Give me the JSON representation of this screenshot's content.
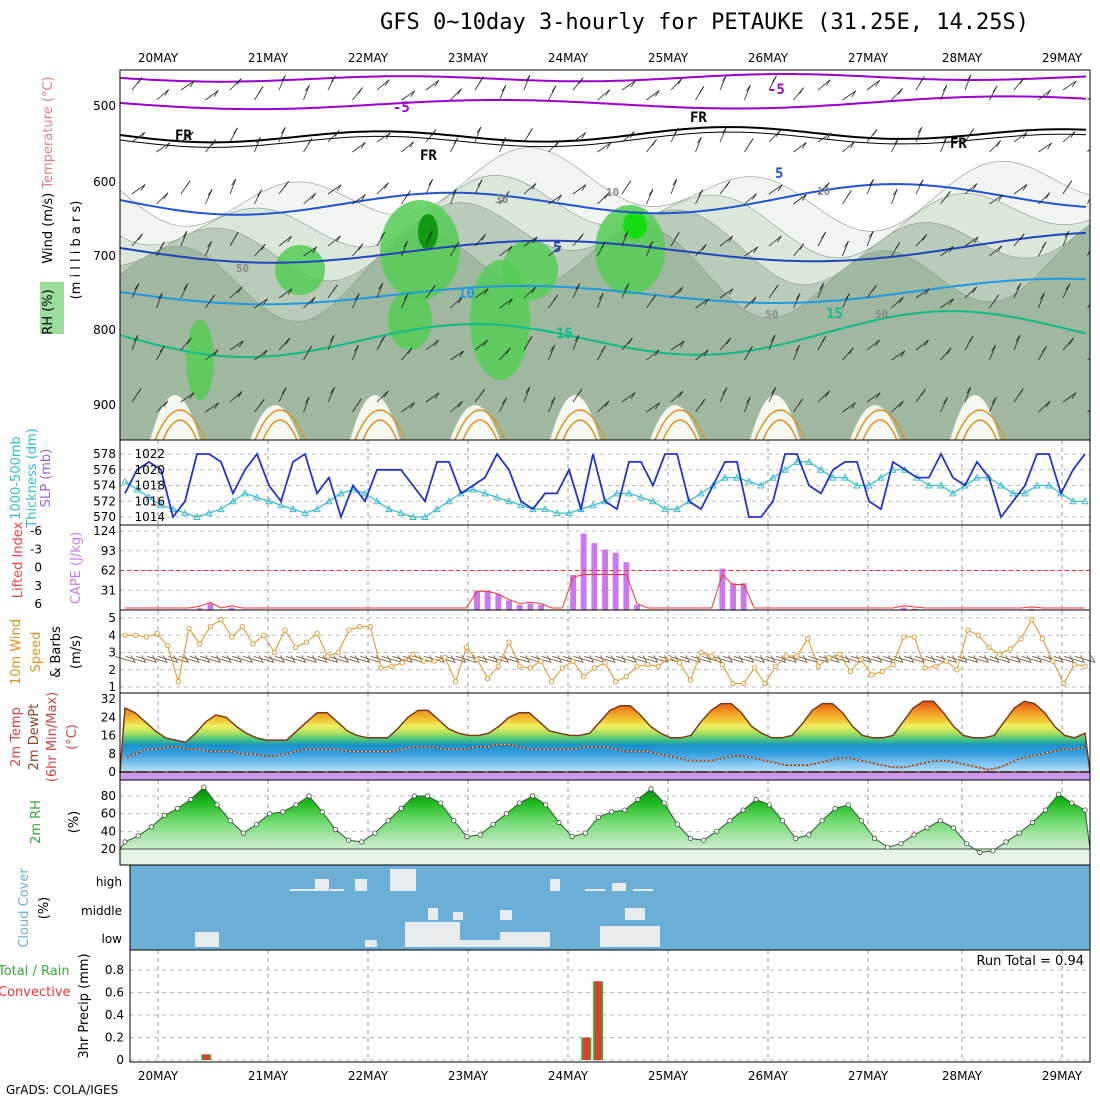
{
  "title": "GFS 0~10day 3-hourly for PETAUKE (31.25E, 14.25S)",
  "credit": "GrADS: COLA/IGES",
  "dates": [
    "20MAY",
    "21MAY",
    "22MAY",
    "23MAY",
    "24MAY",
    "25MAY",
    "26MAY",
    "27MAY",
    "28MAY",
    "29MAY"
  ],
  "colors": {
    "rh_green": "#33cc33",
    "temp_purple": "#9900cc",
    "cape_purple": "#cc77ee",
    "slp_blue": "#2233cc",
    "thick_cyan": "#33bbcc",
    "wind_orange": "#e09020",
    "cloud_blue": "#6baed6",
    "precip_red": "#ee3333",
    "precip_green": "#33aa33"
  },
  "panels": [
    {
      "id": "profile",
      "labels": [
        {
          "text": "Wind (m/s)",
          "color": "#000000"
        },
        {
          "text": "Temperature (°C)",
          "color": "#e08080"
        },
        {
          "text": "RH (%)",
          "color": "#000000"
        }
      ],
      "axis_label": "(m i l l i b a r s)",
      "yticks": [
        "500",
        "600",
        "700",
        "800",
        "900"
      ]
    },
    {
      "id": "slp",
      "labels": [
        {
          "text": "1000-500mb",
          "color": "#33bbcc"
        },
        {
          "text": "Thickness (dm)",
          "color": "#33bbcc"
        },
        {
          "text": "SLP (mb)",
          "color": "#9966cc"
        }
      ],
      "yticks_left": [
        "570",
        "572",
        "574",
        "576",
        "578"
      ],
      "yticks_right": [
        "1014",
        "1016",
        "1018",
        "1020",
        "1022"
      ]
    },
    {
      "id": "cape",
      "labels": [
        {
          "text": "Lifted Index",
          "color": "#ee4444"
        },
        {
          "text": "CAPE (J/kg)",
          "color": "#cc77ee"
        }
      ],
      "yticks_left": [
        "-6",
        "-3",
        "0",
        "3",
        "6"
      ],
      "yticks_right": [
        "124",
        "93",
        "62",
        "31"
      ]
    },
    {
      "id": "wind",
      "labels": [
        {
          "text": "10m Wind",
          "color": "#e09020"
        },
        {
          "text": "Speed",
          "color": "#e09020"
        },
        {
          "text": "& Barbs",
          "color": "#000000"
        },
        {
          "text": "(m/s)",
          "color": "#000000"
        }
      ],
      "yticks": [
        "1",
        "2",
        "3",
        "4",
        "5"
      ]
    },
    {
      "id": "temp",
      "labels": [
        {
          "text": "2m Temp",
          "color": "#cc4444"
        },
        {
          "text": "2m DewPt",
          "color": "#884422"
        },
        {
          "text": "(6hr Min/Max)",
          "color": "#cc4444"
        },
        {
          "text": "(°C)",
          "color": "#cc4444"
        }
      ],
      "yticks": [
        "0",
        "8",
        "16",
        "24",
        "32"
      ]
    },
    {
      "id": "rh",
      "labels": [
        {
          "text": "2m RH",
          "color": "#33aa33"
        },
        {
          "text": "(%)",
          "color": "#000000"
        }
      ],
      "yticks": [
        "20",
        "40",
        "60",
        "80"
      ]
    },
    {
      "id": "cloud",
      "labels": [
        {
          "text": "Cloud Cover",
          "color": "#6baed6"
        },
        {
          "text": "(%)",
          "color": "#000000"
        }
      ],
      "levels": [
        "high",
        "middle",
        "low"
      ]
    },
    {
      "id": "precip",
      "labels": [
        {
          "text": "Total / Rain",
          "color": "#33aa33"
        },
        {
          "text": "Convective",
          "color": "#ee3333"
        },
        {
          "text": "3hr Precip (mm)",
          "color": "#000000"
        }
      ],
      "yticks": [
        "0",
        "0.2",
        "0.4",
        "0.6",
        "0.8"
      ],
      "run_total": "Run Total = 0.94"
    }
  ],
  "contour_labels": [
    "-5",
    "-5",
    "FR",
    "FR",
    "FR",
    "FR",
    "5",
    "5",
    "10",
    "15",
    "15",
    "10",
    "30",
    "50",
    "50",
    "50",
    "10"
  ],
  "chart_data": {
    "type": "line",
    "x": [
      "20MAY",
      "21MAY",
      "22MAY",
      "23MAY",
      "24MAY",
      "25MAY",
      "26MAY",
      "27MAY",
      "28MAY",
      "29MAY"
    ],
    "slp_mb": [
      1017,
      1020,
      1021,
      1020,
      1014,
      1016,
      1022,
      1022,
      1021,
      1017,
      1020,
      1022,
      1018,
      1016,
      1021,
      1022,
      1017,
      1019,
      1014,
      1018,
      1016,
      1020,
      1020,
      1020,
      1018,
      1016,
      1021,
      1021,
      1017,
      1018,
      1019,
      1022,
      1020,
      1016,
      1015,
      1017,
      1017,
      1020,
      1015,
      1022,
      1016,
      1015,
      1021,
      1021,
      1018,
      1022,
      1022,
      1016,
      1015,
      1018,
      1021,
      1021,
      1014,
      1014,
      1016,
      1022,
      1022,
      1018,
      1017,
      1020,
      1021,
      1021,
      1016,
      1015,
      1021,
      1020,
      1019,
      1019,
      1022,
      1019,
      1018,
      1021,
      1019,
      1014,
      1016,
      1018,
      1022,
      1022,
      1017,
      1020,
      1022
    ],
    "thickness_dm": [
      574.5,
      573.5,
      572.5,
      571.5,
      571,
      570.5,
      570,
      570.5,
      571,
      572,
      573,
      572.5,
      572,
      571.5,
      571,
      570.5,
      571,
      572,
      573,
      573.5,
      573,
      572,
      571,
      570.5,
      570,
      570,
      571,
      572,
      573,
      573.5,
      573,
      572.5,
      572,
      571.5,
      571,
      571,
      570.5,
      570.5,
      571,
      571.5,
      572,
      573,
      573,
      572.5,
      572,
      571,
      571,
      572,
      573,
      574,
      575,
      575,
      574.5,
      574,
      575,
      576,
      577,
      577,
      576,
      575,
      575,
      574,
      574,
      575,
      576,
      576,
      575,
      574,
      574,
      573,
      574,
      575,
      575,
      574,
      573,
      573,
      574,
      574,
      573,
      572,
      572
    ],
    "cape_jkg": [
      0,
      0,
      0,
      0,
      0,
      0,
      0,
      3,
      10,
      0,
      4,
      0,
      0,
      0,
      0,
      0,
      0,
      0,
      0,
      0,
      0,
      0,
      0,
      0,
      0,
      0,
      0,
      0,
      0,
      0,
      0,
      0,
      0,
      30,
      30,
      25,
      15,
      8,
      10,
      8,
      0,
      0,
      55,
      120,
      105,
      95,
      90,
      75,
      8,
      0,
      0,
      0,
      0,
      0,
      0,
      0,
      65,
      42,
      42,
      0,
      0,
      0,
      0,
      0,
      0,
      0,
      0,
      0,
      0,
      0,
      0,
      0,
      0,
      4,
      2,
      0,
      0,
      0,
      0,
      0,
      0,
      0,
      0,
      0,
      0,
      2,
      0,
      0,
      0,
      0,
      0
    ],
    "wind_speed_ms": [
      4.0,
      4.0,
      3.9,
      4.1,
      3.4,
      1.3,
      4.4,
      3.5,
      4.5,
      4.9,
      3.9,
      4.5,
      3.5,
      4.0,
      3.0,
      4.3,
      3.3,
      3.6,
      4.1,
      2.8,
      3.0,
      4.3,
      4.5,
      4.5,
      2.1,
      2.2,
      2.4,
      2.9,
      2.5,
      2.5,
      2.7,
      1.3,
      3.3,
      2.6,
      1.5,
      2.2,
      3.6,
      2.2,
      2.1,
      2.5,
      1.3,
      2.1,
      2.5,
      1.6,
      2.1,
      2.4,
      1.3,
      1.6,
      2.2,
      2.3,
      2.2,
      2.7,
      2.4,
      1.4,
      3.0,
      2.8,
      2.3,
      1.2,
      1.2,
      2.1,
      1.2,
      2.2,
      2.8,
      2.8,
      3.8,
      2.2,
      2.7,
      2.9,
      1.9,
      2.6,
      1.7,
      1.9,
      2.3,
      3.9,
      3.9,
      2.1,
      2.2,
      2.5,
      2.0,
      4.3,
      4.0,
      3.3,
      2.9,
      3.2,
      3.8,
      4.9,
      3.8,
      2.5,
      1.2,
      2.3,
      2.2
    ],
    "temp_2m_c": [
      28,
      26,
      22,
      18,
      15,
      14,
      13,
      17,
      22,
      25,
      24,
      20,
      17,
      15,
      14,
      14,
      14,
      18,
      22,
      26,
      26,
      22,
      18,
      16,
      15,
      15,
      15,
      19,
      24,
      27,
      27,
      23,
      19,
      17,
      16,
      16,
      17,
      20,
      24,
      26,
      26,
      22,
      18,
      17,
      16,
      16,
      17,
      22,
      27,
      29,
      29,
      25,
      20,
      17,
      15,
      15,
      16,
      22,
      27,
      30,
      30,
      26,
      20,
      17,
      15,
      15,
      16,
      21,
      27,
      30,
      30,
      26,
      20,
      16,
      15,
      15,
      16,
      22,
      28,
      31,
      31,
      26,
      20,
      16,
      15,
      15,
      16,
      22,
      28,
      31,
      30,
      26,
      20,
      16,
      15,
      17
    ],
    "dewpt_2m_c": [
      6,
      8,
      10,
      10,
      11,
      11,
      10,
      10,
      9,
      9,
      9,
      8,
      8,
      7,
      7,
      8,
      9,
      10,
      10,
      10,
      10,
      9,
      9,
      9,
      9,
      9,
      10,
      11,
      11,
      11,
      10,
      10,
      10,
      11,
      11,
      12,
      12,
      11,
      10,
      10,
      10,
      10,
      10,
      11,
      11,
      11,
      10,
      9,
      9,
      9,
      8,
      7,
      6,
      5,
      5,
      5,
      6,
      7,
      7,
      6,
      5,
      4,
      3,
      3,
      3,
      4,
      5,
      6,
      6,
      5,
      4,
      3,
      2,
      2,
      3,
      4,
      5,
      5,
      4,
      3,
      2,
      1,
      2,
      4,
      6,
      7,
      8,
      9,
      10,
      10,
      11
    ],
    "rh_2m_pct": [
      28,
      35,
      45,
      58,
      66,
      76,
      90,
      70,
      52,
      38,
      48,
      60,
      62,
      70,
      80,
      62,
      42,
      30,
      28,
      38,
      52,
      66,
      80,
      80,
      72,
      52,
      34,
      36,
      48,
      60,
      72,
      80,
      70,
      50,
      34,
      38,
      56,
      62,
      64,
      76,
      88,
      72,
      48,
      32,
      30,
      40,
      52,
      64,
      76,
      70,
      52,
      32,
      36,
      52,
      66,
      70,
      52,
      32,
      22,
      26,
      36,
      44,
      52,
      44,
      26,
      16,
      18,
      28,
      38,
      50,
      64,
      82,
      72,
      64
    ],
    "precip_total_mm": [
      0,
      0,
      0,
      0,
      0,
      0,
      0.05,
      0,
      0,
      0,
      0,
      0,
      0,
      0,
      0,
      0,
      0,
      0,
      0,
      0,
      0,
      0,
      0,
      0,
      0,
      0,
      0,
      0,
      0,
      0,
      0,
      0,
      0,
      0,
      0,
      0,
      0,
      0,
      0.2,
      0.7,
      0,
      0,
      0,
      0,
      0,
      0,
      0,
      0,
      0,
      0,
      0,
      0,
      0,
      0,
      0,
      0,
      0,
      0,
      0,
      0,
      0,
      0,
      0,
      0,
      0,
      0,
      0,
      0,
      0,
      0,
      0,
      0,
      0,
      0,
      0,
      0,
      0,
      0,
      0,
      0,
      0
    ]
  }
}
